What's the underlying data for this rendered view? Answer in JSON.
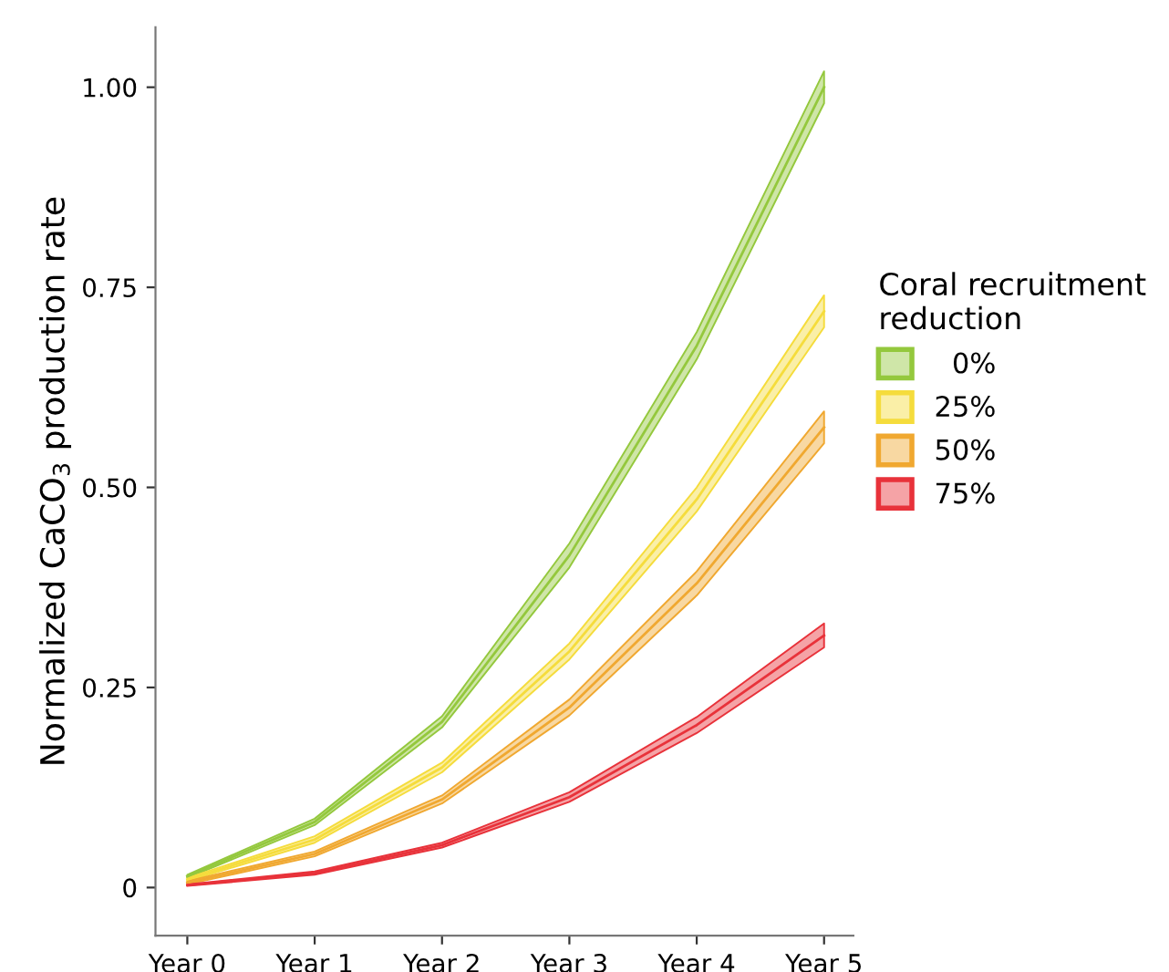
{
  "chart_data": {
    "type": "line",
    "ylabel": "Normalized CaCO$_{3}$ production rate",
    "legend_title": "Coral recruitment\nreduction",
    "categories": [
      "Year 0",
      "Year 1",
      "Year 2",
      "Year 3",
      "Year 4",
      "Year 5"
    ],
    "series": [
      {
        "name": "  0%",
        "color": "#94c83d",
        "values": [
          0.014,
          0.082,
          0.207,
          0.415,
          0.677,
          1.0
        ],
        "lower": [
          0.012,
          0.078,
          0.2,
          0.4,
          0.66,
          0.98
        ],
        "upper": [
          0.016,
          0.086,
          0.214,
          0.43,
          0.694,
          1.02
        ]
      },
      {
        "name": "25%",
        "color": "#f5dc3c",
        "values": [
          0.01,
          0.06,
          0.15,
          0.295,
          0.485,
          0.72
        ],
        "lower": [
          0.008,
          0.056,
          0.144,
          0.285,
          0.47,
          0.7
        ],
        "upper": [
          0.012,
          0.064,
          0.156,
          0.305,
          0.5,
          0.74
        ]
      },
      {
        "name": "50%",
        "color": "#f0a830",
        "values": [
          0.006,
          0.042,
          0.11,
          0.225,
          0.38,
          0.575
        ],
        "lower": [
          0.004,
          0.039,
          0.105,
          0.215,
          0.365,
          0.555
        ],
        "upper": [
          0.008,
          0.045,
          0.115,
          0.235,
          0.395,
          0.595
        ]
      },
      {
        "name": "75%",
        "color": "#e8323a",
        "values": [
          0.003,
          0.018,
          0.053,
          0.113,
          0.203,
          0.315
        ],
        "lower": [
          0.002,
          0.016,
          0.05,
          0.107,
          0.193,
          0.3
        ],
        "upper": [
          0.004,
          0.02,
          0.056,
          0.119,
          0.213,
          0.33
        ]
      }
    ],
    "ylim": [
      -0.06,
      1.075
    ],
    "yticks": [
      0,
      0.25,
      {
        "value": 0.5,
        "label": "0.50"
      },
      {
        "value": 0.75,
        "label": "0.75"
      },
      {
        "value": 1,
        "label": "1.00"
      }
    ],
    "grid": false,
    "legend": "right"
  }
}
